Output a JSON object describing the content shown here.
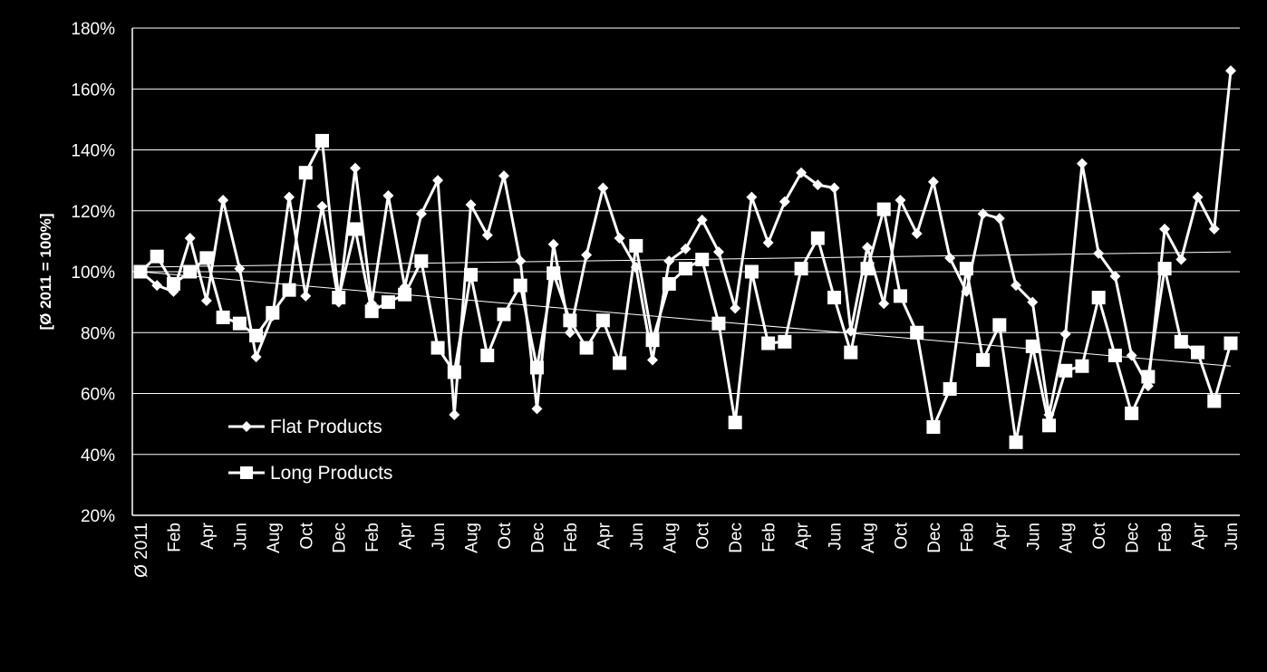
{
  "chart_data": {
    "type": "line",
    "title": "",
    "xlabel": "",
    "ylabel": "[Ø 2011 = 100%]",
    "y_axis": {
      "min": 20,
      "max": 180,
      "ticks": [
        20,
        40,
        60,
        80,
        100,
        120,
        140,
        160,
        180
      ],
      "tick_labels": [
        "20%",
        "40%",
        "60%",
        "80%",
        "100%",
        "120%",
        "140%",
        "160%",
        "180%"
      ]
    },
    "grid": true,
    "legend_position": "bottom-left",
    "x_labels": [
      {
        "index": 0,
        "label": "Ø 2011"
      },
      {
        "index": 2,
        "label": "Feb"
      },
      {
        "index": 4,
        "label": "Apr"
      },
      {
        "index": 6,
        "label": "Jun"
      },
      {
        "index": 8,
        "label": "Aug"
      },
      {
        "index": 10,
        "label": "Oct"
      },
      {
        "index": 12,
        "label": "Dec"
      },
      {
        "index": 14,
        "label": "Feb"
      },
      {
        "index": 16,
        "label": "Apr"
      },
      {
        "index": 18,
        "label": "Jun"
      },
      {
        "index": 20,
        "label": "Aug"
      },
      {
        "index": 22,
        "label": "Oct"
      },
      {
        "index": 24,
        "label": "Dec"
      },
      {
        "index": 26,
        "label": "Feb"
      },
      {
        "index": 28,
        "label": "Apr"
      },
      {
        "index": 30,
        "label": "Jun"
      },
      {
        "index": 32,
        "label": "Aug"
      },
      {
        "index": 34,
        "label": "Oct"
      },
      {
        "index": 36,
        "label": "Dec"
      },
      {
        "index": 38,
        "label": "Feb"
      },
      {
        "index": 40,
        "label": "Apr"
      },
      {
        "index": 42,
        "label": "Jun"
      },
      {
        "index": 44,
        "label": "Aug"
      },
      {
        "index": 46,
        "label": "Oct"
      },
      {
        "index": 48,
        "label": "Dec"
      },
      {
        "index": 50,
        "label": "Feb"
      },
      {
        "index": 52,
        "label": "Apr"
      },
      {
        "index": 54,
        "label": "Jun"
      },
      {
        "index": 56,
        "label": "Aug"
      },
      {
        "index": 58,
        "label": "Oct"
      },
      {
        "index": 60,
        "label": "Dec"
      },
      {
        "index": 62,
        "label": "Feb"
      },
      {
        "index": 64,
        "label": "Apr"
      },
      {
        "index": 66,
        "label": "Jun"
      }
    ],
    "series": [
      {
        "name": "Flat Products",
        "marker": "diamond",
        "color": "#ffffff",
        "values": [
          100,
          95.5,
          93.5,
          111,
          90.5,
          123.5,
          101,
          72,
          85.5,
          124.5,
          92,
          121.5,
          90,
          134,
          89.5,
          125,
          95,
          119,
          130,
          53,
          122,
          112,
          131.5,
          103.5,
          55,
          109,
          80,
          105.5,
          127.5,
          111,
          101.5,
          71,
          103.5,
          107.5,
          117,
          106.5,
          88,
          124.5,
          109.5,
          123,
          132.5,
          128.5,
          127.5,
          80.5,
          108,
          89.5,
          123.5,
          112.5,
          129.5,
          104.5,
          93.5,
          119,
          117.5,
          95.5,
          90,
          53,
          79.5,
          135.5,
          106,
          98.5,
          72.5,
          62.5,
          114,
          104,
          124.5,
          114,
          166
        ]
      },
      {
        "name": "Long Products",
        "marker": "square",
        "color": "#ffffff",
        "values": [
          100,
          105,
          96,
          100,
          104.5,
          85,
          83,
          79,
          86.5,
          94,
          132.5,
          143,
          91.5,
          114,
          87,
          90,
          92.5,
          103.5,
          75,
          67,
          99,
          72.5,
          86,
          95.5,
          68.5,
          99.5,
          84,
          75,
          84,
          70,
          108.5,
          77.5,
          96,
          101,
          104,
          83,
          50.5,
          100,
          76.5,
          77,
          101,
          111,
          91.5,
          73.5,
          101,
          120.5,
          92,
          80,
          49,
          61.5,
          101,
          71,
          82.5,
          44,
          75.5,
          49.5,
          67.5,
          69,
          91.5,
          72.5,
          53.5,
          65.5,
          101,
          77,
          73.5,
          57.5,
          76.5
        ]
      }
    ],
    "trendlines": [
      {
        "series": "Flat Products",
        "start": 101.5,
        "end": 106.5
      },
      {
        "series": "Long Products",
        "start": 100,
        "end": 69
      }
    ]
  }
}
